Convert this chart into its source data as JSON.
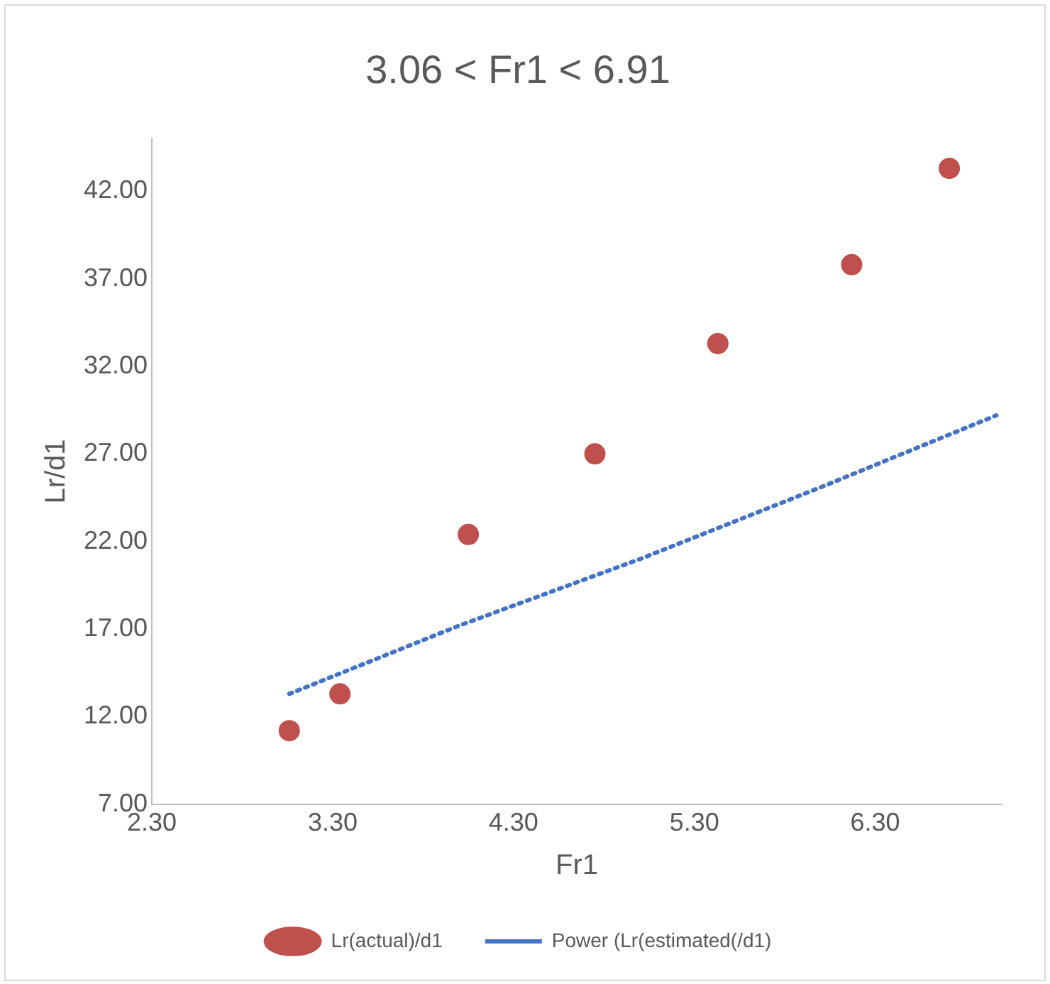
{
  "chart_data": {
    "type": "scatter",
    "title": "3.06 < Fr1 < 6.91",
    "xlabel": "Fr1",
    "ylabel": "Lr/d1",
    "xlim": [
      2.3,
      7.0
    ],
    "xticks": [
      {
        "value": 2.3,
        "label": "2.30"
      },
      {
        "value": 3.3,
        "label": "3.30"
      },
      {
        "value": 4.3,
        "label": "4.30"
      },
      {
        "value": 5.3,
        "label": "5.30"
      },
      {
        "value": 6.3,
        "label": "6.30"
      }
    ],
    "ylim": [
      7,
      45
    ],
    "yticks": [
      {
        "value": 7,
        "label": "7.00"
      },
      {
        "value": 12,
        "label": "12.00"
      },
      {
        "value": 17,
        "label": "17.00"
      },
      {
        "value": 22,
        "label": "22.00"
      },
      {
        "value": 27,
        "label": "27.00"
      },
      {
        "value": 32,
        "label": "32.00"
      },
      {
        "value": 37,
        "label": "37.00"
      },
      {
        "value": 42,
        "label": "42.00"
      }
    ],
    "grid": false,
    "legend": "bottom",
    "series": [
      {
        "name": "Lr(actual)/d1",
        "type": "scatter",
        "color": "#c0504d",
        "marker": "circle",
        "x": [
          3.06,
          3.34,
          4.05,
          4.75,
          5.43,
          6.17,
          6.71
        ],
        "values": [
          11.2,
          13.3,
          22.4,
          27.0,
          33.3,
          37.8,
          43.3
        ]
      },
      {
        "name": "Power (Lr(estimated(/d1)",
        "type": "line",
        "color": "#4472c4",
        "marker": "none",
        "line_style": "dotted",
        "x": [
          3.06,
          4.0,
          5.0,
          6.0,
          6.97
        ],
        "values": [
          13.3,
          17.2,
          21.0,
          25.1,
          29.2
        ]
      }
    ]
  }
}
